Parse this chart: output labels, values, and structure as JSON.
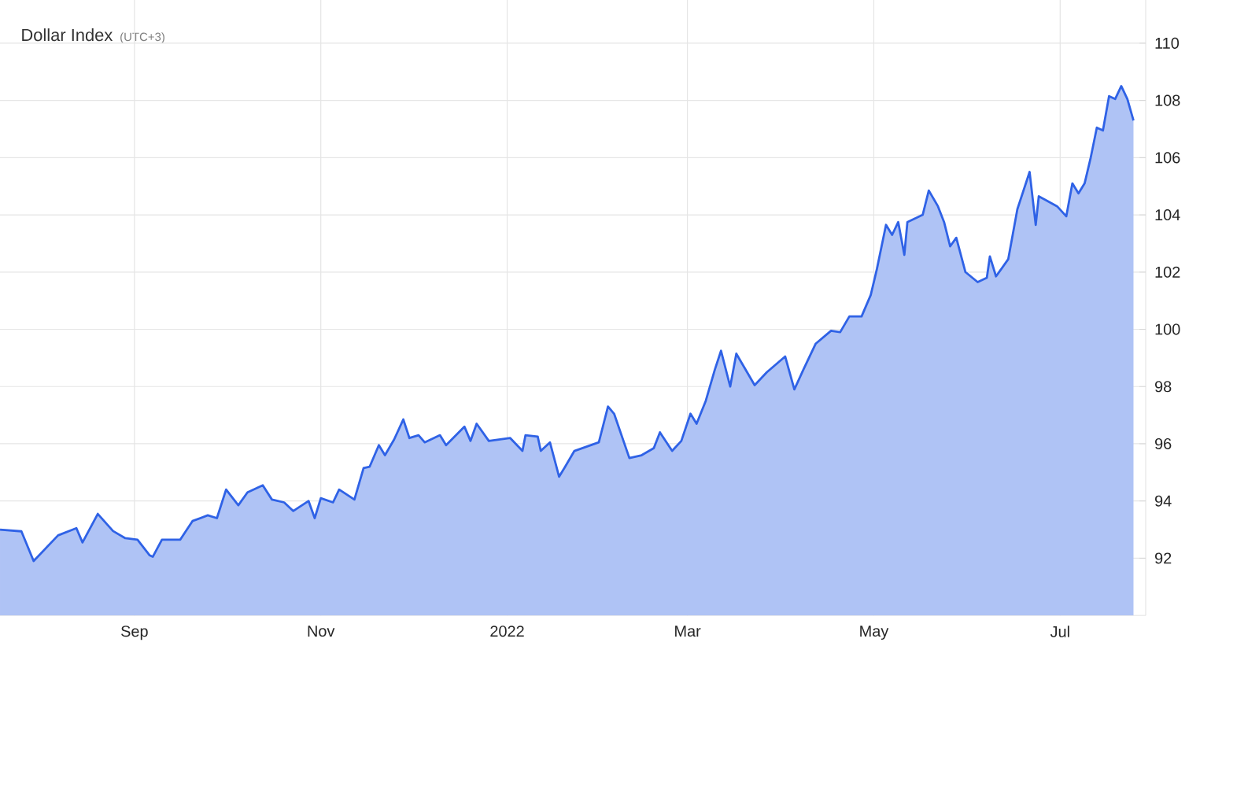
{
  "chart_data": {
    "type": "area",
    "title": "Dollar Index",
    "subtitle": "(UTC+3)",
    "x": [
      "2021-07-19",
      "2021-07-26",
      "2021-07-30",
      "2021-08-07",
      "2021-08-13",
      "2021-08-15",
      "2021-08-20",
      "2021-08-25",
      "2021-08-29",
      "2021-09-02",
      "2021-09-06",
      "2021-09-07",
      "2021-09-10",
      "2021-09-16",
      "2021-09-20",
      "2021-09-25",
      "2021-09-28",
      "2021-10-01",
      "2021-10-05",
      "2021-10-08",
      "2021-10-13",
      "2021-10-16",
      "2021-10-20",
      "2021-10-23",
      "2021-10-28",
      "2021-10-30",
      "2021-11-01",
      "2021-11-05",
      "2021-11-07",
      "2021-11-12",
      "2021-11-15",
      "2021-11-17",
      "2021-11-20",
      "2021-11-22",
      "2021-11-25",
      "2021-11-28",
      "2021-11-30",
      "2021-12-03",
      "2021-12-05",
      "2021-12-10",
      "2021-12-12",
      "2021-12-18",
      "2021-12-20",
      "2021-12-22",
      "2021-12-26",
      "2022-01-02",
      "2022-01-06",
      "2022-01-07",
      "2022-01-11",
      "2022-01-12",
      "2022-01-15",
      "2022-01-18",
      "2022-01-20",
      "2022-01-23",
      "2022-01-31",
      "2022-02-03",
      "2022-02-05",
      "2022-02-10",
      "2022-02-14",
      "2022-02-18",
      "2022-02-20",
      "2022-02-24",
      "2022-02-27",
      "2022-03-02",
      "2022-03-04",
      "2022-03-07",
      "2022-03-10",
      "2022-03-12",
      "2022-03-15",
      "2022-03-17",
      "2022-03-23",
      "2022-03-27",
      "2022-04-02",
      "2022-04-05",
      "2022-04-08",
      "2022-04-12",
      "2022-04-17",
      "2022-04-20",
      "2022-04-23",
      "2022-04-27",
      "2022-04-30",
      "2022-05-02",
      "2022-05-05",
      "2022-05-07",
      "2022-05-09",
      "2022-05-11",
      "2022-05-12",
      "2022-05-17",
      "2022-05-19",
      "2022-05-22",
      "2022-05-24",
      "2022-05-26",
      "2022-05-28",
      "2022-05-31",
      "2022-06-04",
      "2022-06-07",
      "2022-06-08",
      "2022-06-10",
      "2022-06-14",
      "2022-06-17",
      "2022-06-21",
      "2022-06-23",
      "2022-06-24",
      "2022-06-30",
      "2022-07-03",
      "2022-07-05",
      "2022-07-07",
      "2022-07-09",
      "2022-07-11",
      "2022-07-13",
      "2022-07-15",
      "2022-07-17",
      "2022-07-19",
      "2022-07-21",
      "2022-07-23",
      "2022-07-25"
    ],
    "series": [
      {
        "color": "#2f62e6",
        "values": [
          93.0,
          92.94,
          91.9,
          92.8,
          93.05,
          92.55,
          93.55,
          92.95,
          92.7,
          92.65,
          92.1,
          92.05,
          92.65,
          92.65,
          93.3,
          93.5,
          93.4,
          94.4,
          93.85,
          94.3,
          94.55,
          94.05,
          93.95,
          93.65,
          94.0,
          93.4,
          94.1,
          93.95,
          94.4,
          94.05,
          95.15,
          95.2,
          95.95,
          95.6,
          96.15,
          96.85,
          96.2,
          96.3,
          96.05,
          96.3,
          95.95,
          96.6,
          96.1,
          96.7,
          96.1,
          96.2,
          95.75,
          96.3,
          96.25,
          95.75,
          96.05,
          94.85,
          95.2,
          95.75,
          96.05,
          97.3,
          97.05,
          95.5,
          95.6,
          95.85,
          96.4,
          95.75,
          96.1,
          97.05,
          96.7,
          97.5,
          98.6,
          99.25,
          98.0,
          99.15,
          98.05,
          98.5,
          99.05,
          97.9,
          98.6,
          99.5,
          99.95,
          99.9,
          100.45,
          100.45,
          101.2,
          102.1,
          103.65,
          103.3,
          103.75,
          102.6,
          103.75,
          104.0,
          104.85,
          104.3,
          103.75,
          102.9,
          103.2,
          102.0,
          101.65,
          101.8,
          102.55,
          101.85,
          102.45,
          104.2,
          105.5,
          103.65,
          104.65,
          104.3,
          103.95,
          105.1,
          104.75,
          105.1,
          106.0,
          107.05,
          106.95,
          108.15,
          108.05,
          108.5,
          108.05,
          107.3
        ]
      }
    ],
    "xlim": [
      "2021-07-19",
      "2022-07-29"
    ],
    "xticks": [
      {
        "value": "2021-09-01",
        "label": "Sep"
      },
      {
        "value": "2021-11-01",
        "label": "Nov"
      },
      {
        "value": "2022-01-01",
        "label": "2022"
      },
      {
        "value": "2022-03-01",
        "label": "Mar"
      },
      {
        "value": "2022-05-01",
        "label": "May"
      },
      {
        "value": "2022-07-01",
        "label": "Jul"
      }
    ],
    "ylim": [
      90,
      112
    ],
    "yticks": [
      92,
      94,
      96,
      98,
      100,
      102,
      104,
      106,
      108,
      110
    ],
    "grid": true
  }
}
